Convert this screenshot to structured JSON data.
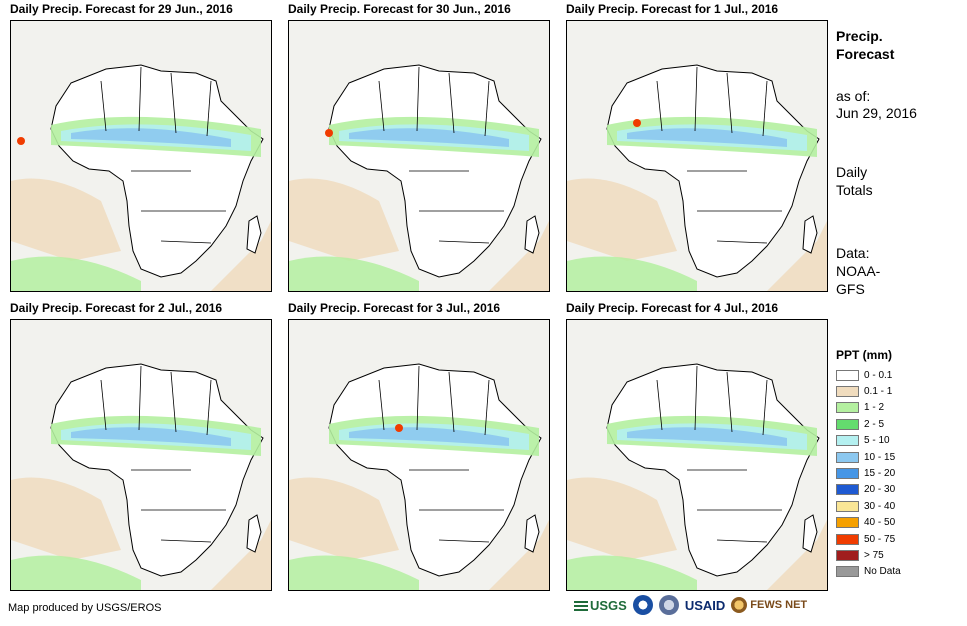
{
  "header": {
    "title_line1": "Precip.",
    "title_line2": "Forecast",
    "asof_label": "as of:",
    "asof_date": "Jun 29, 2016",
    "totals_line1": "Daily",
    "totals_line2": "Totals",
    "data_line1": "Data:",
    "data_line2": "NOAA-",
    "data_line3": "GFS"
  },
  "panels": [
    {
      "title": "Daily Precip. Forecast for 29 Jun., 2016"
    },
    {
      "title": "Daily Precip. Forecast for 30 Jun., 2016"
    },
    {
      "title": "Daily Precip. Forecast for 1 Jul., 2016"
    },
    {
      "title": "Daily Precip. Forecast for 2 Jul., 2016"
    },
    {
      "title": "Daily Precip. Forecast for 3 Jul., 2016"
    },
    {
      "title": "Daily Precip. Forecast for 4 Jul., 2016"
    }
  ],
  "legend": {
    "title": "PPT (mm)",
    "items": [
      {
        "label": "0 - 0.1",
        "color": "#ffffff"
      },
      {
        "label": "0.1 - 1",
        "color": "#f0dcbe"
      },
      {
        "label": "1 - 2",
        "color": "#b4f0a0"
      },
      {
        "label": "2 - 5",
        "color": "#64dc6e"
      },
      {
        "label": "5 - 10",
        "color": "#b4f0f0"
      },
      {
        "label": "10 - 15",
        "color": "#8cc8f0"
      },
      {
        "label": "15 - 20",
        "color": "#4696e6"
      },
      {
        "label": "20 - 30",
        "color": "#1e5ad2"
      },
      {
        "label": "30 - 40",
        "color": "#fae696"
      },
      {
        "label": "40 - 50",
        "color": "#f5a000"
      },
      {
        "label": "50 - 75",
        "color": "#f03c00"
      },
      {
        "label": "> 75",
        "color": "#a01e1e"
      },
      {
        "label": "No Data",
        "color": "#999999"
      }
    ]
  },
  "footer": {
    "credit": "Map produced by USGS/EROS",
    "logo_usgs": "USGS",
    "logo_usaid": "USAID",
    "logo_fews": "FEWS NET"
  }
}
